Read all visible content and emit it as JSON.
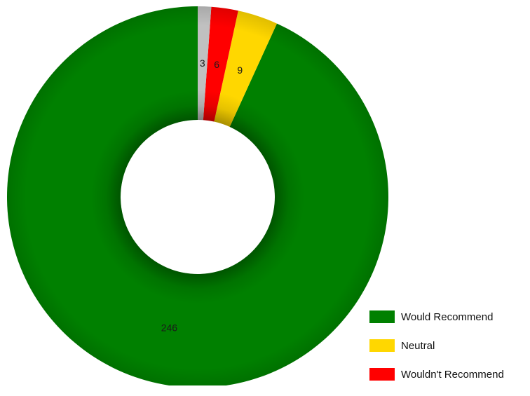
{
  "chart_data": {
    "type": "pie",
    "subtype": "donut",
    "title": "",
    "series": [
      {
        "name": "Would Recommend",
        "value": 246,
        "color": "#008000"
      },
      {
        "name": "Neutral",
        "value": 9,
        "color": "#ffd700"
      },
      {
        "name": "Wouldn't Recommend",
        "value": 6,
        "color": "#ff0000"
      },
      {
        "name": "",
        "value": 3,
        "color": "#c0c0c0"
      }
    ],
    "legend": {
      "placement": "bottom-right",
      "entries": [
        "Would Recommend",
        "Neutral",
        "Wouldn't Recommend"
      ]
    }
  }
}
